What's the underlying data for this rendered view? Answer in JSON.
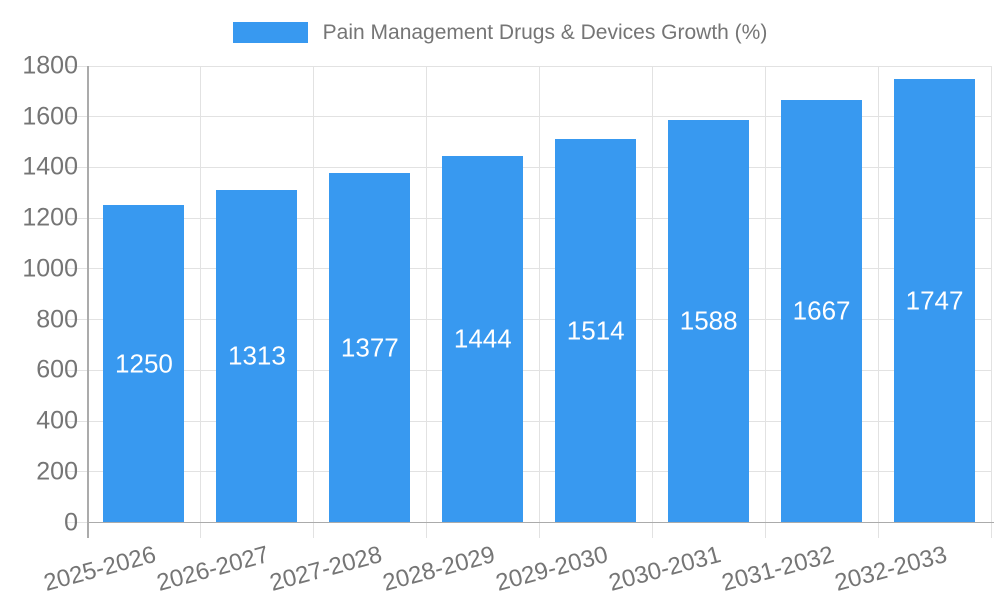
{
  "legend": {
    "label": "Pain Management Drugs & Devices Growth (%)"
  },
  "colors": {
    "bar": "#3899f0",
    "grid": "#e2e2e2",
    "axis": "#ababab",
    "text": "#757575",
    "value_label": "#ffffff",
    "background": "#ffffff"
  },
  "chart_data": {
    "type": "bar",
    "title": "",
    "legend": "Pain Management Drugs & Devices Growth (%)",
    "legend_position": "top",
    "categories": [
      "2025-2026",
      "2026-2027",
      "2027-2028",
      "2028-2029",
      "2029-2030",
      "2030-2031",
      "2031-2032",
      "2032-2033"
    ],
    "values": [
      1250,
      1313,
      1377,
      1444,
      1514,
      1588,
      1667,
      1747
    ],
    "xlabel": "",
    "ylabel": "",
    "ylim": [
      0,
      1800
    ],
    "ytick_step": 200,
    "grid": true,
    "bar_labels": "inside-center",
    "x_label_rotation_deg": -15
  }
}
